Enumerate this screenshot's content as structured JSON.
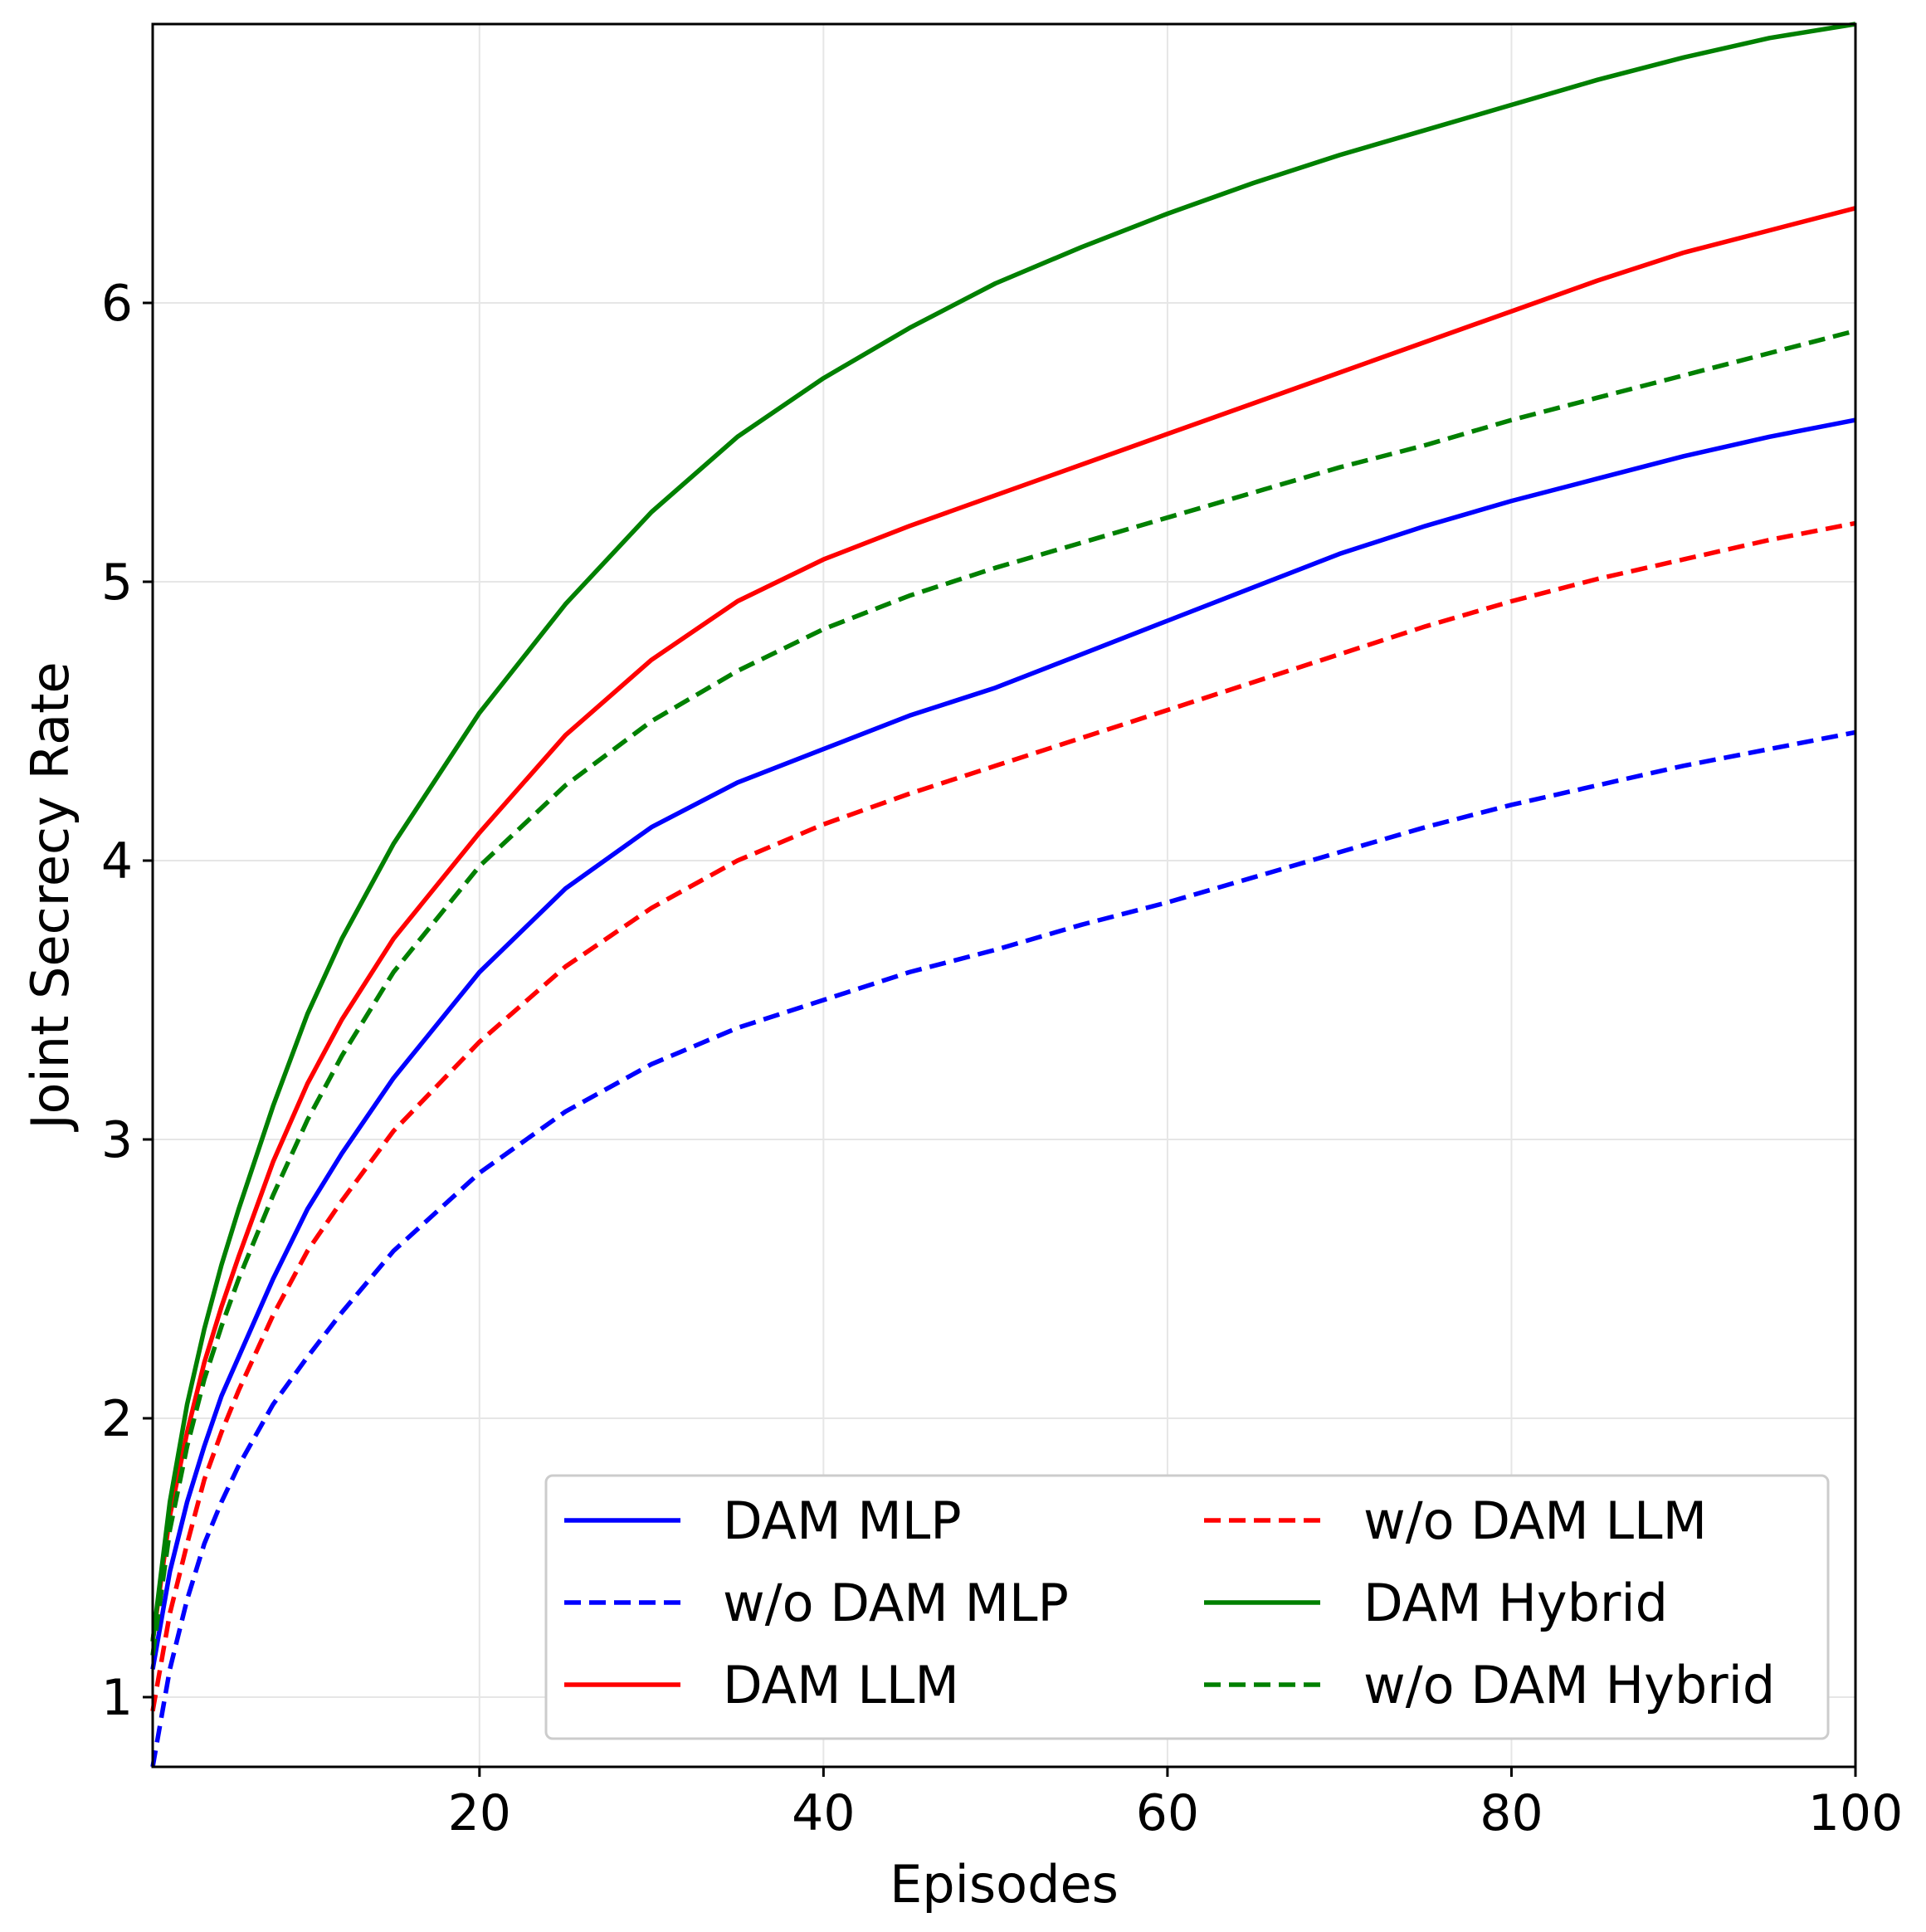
{
  "chart_data": {
    "type": "line",
    "title": "",
    "xlabel": "Episodes",
    "ylabel": "Joint Secrecy Rate",
    "xlim": [
      1,
      100
    ],
    "ylim": [
      0.75,
      7.0
    ],
    "xticks": [
      20,
      40,
      60,
      80,
      100
    ],
    "yticks": [
      1,
      2,
      3,
      4,
      5,
      6
    ],
    "grid": true,
    "legend_position": "lower-right",
    "legend_columns": 2,
    "series": [
      {
        "name": "DAM MLP",
        "color": "#0000ff",
        "dash": "solid",
        "x": [
          1,
          2,
          3,
          4,
          5,
          6,
          8,
          10,
          12,
          15,
          20,
          25,
          30,
          35,
          40,
          45,
          50,
          55,
          60,
          65,
          70,
          75,
          80,
          85,
          90,
          95,
          100
        ],
        "y": [
          1.1,
          1.45,
          1.7,
          1.9,
          2.08,
          2.22,
          2.5,
          2.75,
          2.95,
          3.22,
          3.6,
          3.9,
          4.12,
          4.28,
          4.4,
          4.52,
          4.62,
          4.74,
          4.86,
          4.98,
          5.1,
          5.2,
          5.29,
          5.37,
          5.45,
          5.52,
          5.58
        ]
      },
      {
        "name": "w/o DAM MLP",
        "color": "#0000ff",
        "dash": "dashed",
        "x": [
          1,
          2,
          3,
          4,
          5,
          6,
          8,
          10,
          12,
          15,
          20,
          25,
          30,
          35,
          40,
          45,
          50,
          55,
          60,
          65,
          70,
          75,
          80,
          85,
          90,
          95,
          100
        ],
        "y": [
          0.75,
          1.1,
          1.35,
          1.55,
          1.7,
          1.83,
          2.05,
          2.22,
          2.38,
          2.6,
          2.88,
          3.1,
          3.27,
          3.4,
          3.5,
          3.6,
          3.68,
          3.77,
          3.85,
          3.94,
          4.03,
          4.12,
          4.2,
          4.27,
          4.34,
          4.4,
          4.46
        ]
      },
      {
        "name": "DAM LLM",
        "color": "#ff0000",
        "dash": "solid",
        "x": [
          1,
          2,
          3,
          4,
          5,
          6,
          8,
          10,
          12,
          15,
          20,
          25,
          30,
          35,
          40,
          45,
          50,
          55,
          60,
          65,
          70,
          75,
          80,
          85,
          90,
          95,
          100
        ],
        "y": [
          1.2,
          1.65,
          1.95,
          2.2,
          2.4,
          2.58,
          2.92,
          3.2,
          3.43,
          3.72,
          4.1,
          4.45,
          4.72,
          4.93,
          5.08,
          5.2,
          5.31,
          5.42,
          5.53,
          5.64,
          5.75,
          5.86,
          5.97,
          6.08,
          6.18,
          6.26,
          6.34
        ]
      },
      {
        "name": "w/o DAM LLM",
        "color": "#ff0000",
        "dash": "dashed",
        "x": [
          1,
          2,
          3,
          4,
          5,
          6,
          8,
          10,
          12,
          15,
          20,
          25,
          30,
          35,
          40,
          45,
          50,
          55,
          60,
          65,
          70,
          75,
          80,
          85,
          90,
          95,
          100
        ],
        "y": [
          0.95,
          1.3,
          1.55,
          1.78,
          1.95,
          2.1,
          2.37,
          2.6,
          2.78,
          3.03,
          3.35,
          3.62,
          3.83,
          4.0,
          4.13,
          4.24,
          4.34,
          4.44,
          4.54,
          4.64,
          4.74,
          4.84,
          4.93,
          5.01,
          5.08,
          5.15,
          5.21
        ]
      },
      {
        "name": "DAM Hybrid",
        "color": "#008000",
        "dash": "solid",
        "x": [
          1,
          2,
          3,
          4,
          5,
          6,
          8,
          10,
          12,
          15,
          20,
          25,
          30,
          35,
          40,
          45,
          50,
          55,
          60,
          65,
          70,
          75,
          80,
          85,
          90,
          95,
          100
        ],
        "y": [
          1.2,
          1.7,
          2.05,
          2.32,
          2.55,
          2.75,
          3.12,
          3.45,
          3.72,
          4.06,
          4.53,
          4.92,
          5.25,
          5.52,
          5.73,
          5.91,
          6.07,
          6.2,
          6.32,
          6.43,
          6.53,
          6.62,
          6.71,
          6.8,
          6.88,
          6.95,
          7.0
        ]
      },
      {
        "name": "w/o DAM Hybrid",
        "color": "#008000",
        "dash": "dashed",
        "x": [
          1,
          2,
          3,
          4,
          5,
          6,
          8,
          10,
          12,
          15,
          20,
          25,
          30,
          35,
          40,
          45,
          50,
          55,
          60,
          65,
          70,
          75,
          80,
          85,
          90,
          95,
          100
        ],
        "y": [
          1.15,
          1.6,
          1.9,
          2.14,
          2.33,
          2.5,
          2.8,
          3.07,
          3.3,
          3.6,
          3.98,
          4.27,
          4.5,
          4.68,
          4.83,
          4.95,
          5.05,
          5.14,
          5.23,
          5.32,
          5.41,
          5.49,
          5.58,
          5.66,
          5.74,
          5.82,
          5.9
        ]
      }
    ]
  }
}
